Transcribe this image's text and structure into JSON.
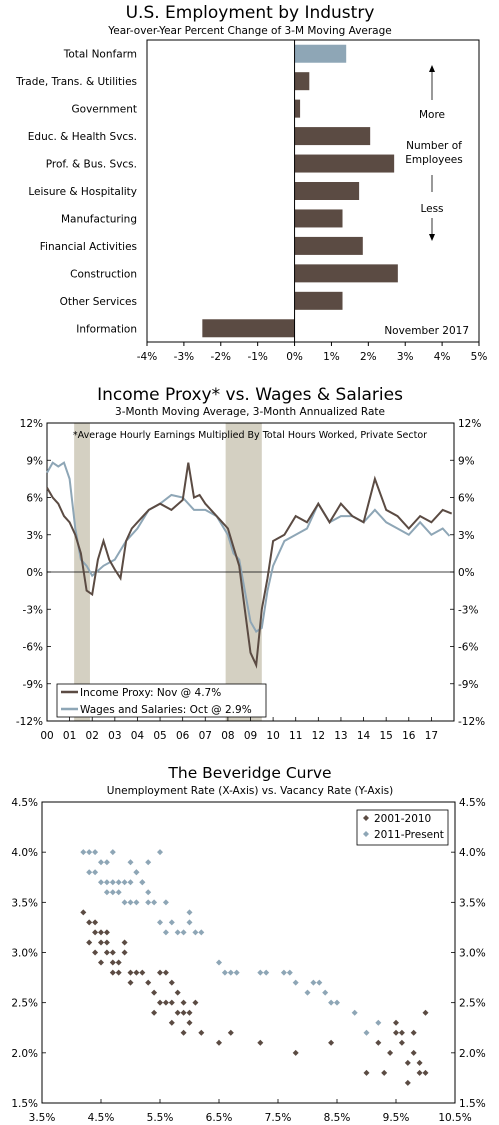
{
  "colors": {
    "bar": "#5b4b43",
    "bar_highlight": "#8ea6b6",
    "line_dark": "#5b4b43",
    "line_light": "#8ea6b6",
    "recession": "#d4d0c2"
  },
  "chart_data": [
    {
      "type": "bar",
      "orientation": "horizontal",
      "title": "U.S. Employment by Industry",
      "subtitle": "Year-over-Year Percent Change of 3-M Moving Average",
      "categories": [
        "Total Nonfarm",
        "Trade, Trans. & Utilities",
        "Government",
        "Educ. & Health Svcs.",
        "Prof. & Bus. Svcs.",
        "Leisure & Hospitality",
        "Manufacturing",
        "Financial Activities",
        "Construction",
        "Other Services",
        "Information"
      ],
      "values": [
        1.4,
        0.4,
        0.15,
        2.05,
        2.7,
        1.75,
        1.3,
        1.85,
        2.8,
        1.3,
        -2.5
      ],
      "highlight_index": 0,
      "x_ticks": [
        "-4%",
        "-3%",
        "-2%",
        "-1%",
        "0%",
        "1%",
        "2%",
        "3%",
        "4%",
        "5%"
      ],
      "xlim": [
        -4,
        5
      ],
      "annotations": {
        "more": "More",
        "number_line1": "Number of",
        "number_line2": "Employees",
        "less": "Less",
        "date": "November 2017"
      }
    },
    {
      "type": "line",
      "title": "Income Proxy* vs. Wages & Salaries",
      "subtitle": "3-Month Moving Average, 3-Month Annualized Rate",
      "note": "*Average Hourly Earnings Multiplied By Total Hours Worked, Private Sector",
      "x_ticks": [
        "00",
        "01",
        "02",
        "03",
        "04",
        "05",
        "06",
        "07",
        "08",
        "09",
        "10",
        "11",
        "12",
        "13",
        "14",
        "15",
        "16",
        "17"
      ],
      "xlim": [
        2000.0,
        2018.0
      ],
      "y_ticks": [
        "12%",
        "9%",
        "6%",
        "3%",
        "0%",
        "-3%",
        "-6%",
        "-9%",
        "-12%"
      ],
      "ylim": [
        -12,
        12
      ],
      "recessions": [
        [
          2001.2,
          2001.9
        ],
        [
          2007.9,
          2009.5
        ]
      ],
      "legend": [
        "Income Proxy: Nov @ 4.7%",
        "Wages and Salaries: Oct @ 2.9%"
      ],
      "series": [
        {
          "name": "Income Proxy: Nov @ 4.7%",
          "x": [
            2000.0,
            2000.25,
            2000.5,
            2000.75,
            2001.0,
            2001.25,
            2001.5,
            2001.75,
            2002.0,
            2002.25,
            2002.5,
            2002.75,
            2003.0,
            2003.25,
            2003.5,
            2003.75,
            2004.0,
            2004.5,
            2005.0,
            2005.5,
            2006.0,
            2006.25,
            2006.5,
            2006.75,
            2007.0,
            2007.5,
            2008.0,
            2008.25,
            2008.5,
            2008.75,
            2009.0,
            2009.25,
            2009.5,
            2009.75,
            2010.0,
            2010.5,
            2011.0,
            2011.5,
            2012.0,
            2012.5,
            2013.0,
            2013.5,
            2014.0,
            2014.5,
            2015.0,
            2015.5,
            2016.0,
            2016.5,
            2017.0,
            2017.5,
            2017.9
          ],
          "y": [
            6.8,
            6.0,
            5.5,
            4.5,
            4.0,
            3.0,
            1.5,
            -1.5,
            -1.8,
            1.0,
            2.5,
            1.0,
            0.2,
            -0.5,
            2.5,
            3.5,
            4.0,
            5.0,
            5.5,
            5.0,
            5.8,
            8.8,
            6.0,
            6.2,
            5.5,
            4.5,
            3.5,
            2.0,
            0.5,
            -3.0,
            -6.5,
            -7.5,
            -3.0,
            -0.5,
            2.5,
            3.0,
            4.5,
            4.0,
            5.5,
            4.0,
            5.5,
            4.5,
            4.0,
            7.5,
            5.0,
            4.5,
            3.5,
            4.5,
            4.0,
            5.0,
            4.7
          ]
        },
        {
          "name": "Wages and Salaries: Oct @ 2.9%",
          "x": [
            2000.0,
            2000.25,
            2000.5,
            2000.75,
            2001.0,
            2001.25,
            2001.5,
            2001.75,
            2002.0,
            2002.5,
            2003.0,
            2003.5,
            2004.0,
            2004.5,
            2005.0,
            2005.5,
            2006.0,
            2006.5,
            2007.0,
            2007.5,
            2008.0,
            2008.25,
            2008.5,
            2008.75,
            2009.0,
            2009.25,
            2009.5,
            2009.75,
            2010.0,
            2010.5,
            2011.0,
            2011.5,
            2012.0,
            2012.5,
            2013.0,
            2013.5,
            2014.0,
            2014.5,
            2015.0,
            2015.5,
            2016.0,
            2016.5,
            2017.0,
            2017.5,
            2017.8
          ],
          "y": [
            8.0,
            8.8,
            8.5,
            8.8,
            7.5,
            3.5,
            1.0,
            0.5,
            -0.3,
            0.5,
            1.0,
            2.5,
            3.5,
            5.0,
            5.5,
            6.2,
            6.0,
            5.0,
            5.0,
            4.5,
            3.0,
            1.5,
            1.0,
            -1.5,
            -4.0,
            -4.8,
            -4.5,
            -1.5,
            0.5,
            2.5,
            3.0,
            3.5,
            5.5,
            4.0,
            4.5,
            4.5,
            4.0,
            5.0,
            4.0,
            3.5,
            3.0,
            4.0,
            3.0,
            3.5,
            2.9
          ]
        }
      ]
    },
    {
      "type": "scatter",
      "title": "The Beveridge Curve",
      "subtitle": "Unemployment Rate (X-Axis) vs. Vacancy Rate (Y-Axis)",
      "x_ticks": [
        "3.5%",
        "4.5%",
        "5.5%",
        "6.5%",
        "7.5%",
        "8.5%",
        "9.5%",
        "10.5%"
      ],
      "xlim": [
        3.5,
        10.5
      ],
      "y_ticks": [
        "4.5%",
        "4.0%",
        "3.5%",
        "3.0%",
        "2.5%",
        "2.0%",
        "1.5%"
      ],
      "ylim": [
        1.5,
        4.5
      ],
      "legend": [
        "2001-2010",
        "2011-Present"
      ],
      "series": [
        {
          "name": "2001-2010",
          "x": [
            4.2,
            4.3,
            4.4,
            4.5,
            4.6,
            4.3,
            4.4,
            4.5,
            4.6,
            4.4,
            4.5,
            4.7,
            4.8,
            4.6,
            4.7,
            4.9,
            5.0,
            4.7,
            4.8,
            5.0,
            4.9,
            5.2,
            5.1,
            5.3,
            5.4,
            5.5,
            5.6,
            5.7,
            5.8,
            5.9,
            5.5,
            5.6,
            5.7,
            5.8,
            5.9,
            6.0,
            6.1,
            5.4,
            5.7,
            5.9,
            6.0,
            6.2,
            6.5,
            6.7,
            7.2,
            7.8,
            8.4,
            9.0,
            9.2,
            9.4,
            9.5,
            9.6,
            9.7,
            9.8,
            9.9,
            10.0,
            9.5,
            9.6,
            9.8,
            9.9,
            9.7,
            10.0,
            9.3
          ],
          "y": [
            3.4,
            3.3,
            3.2,
            3.1,
            3.0,
            3.1,
            3.0,
            3.2,
            3.1,
            3.3,
            2.9,
            3.0,
            2.9,
            3.2,
            2.8,
            3.0,
            2.8,
            2.9,
            2.8,
            2.7,
            3.1,
            2.8,
            2.8,
            2.7,
            2.6,
            2.5,
            2.5,
            2.5,
            2.4,
            2.5,
            2.8,
            2.8,
            2.7,
            2.6,
            2.4,
            2.4,
            2.5,
            2.4,
            2.3,
            2.2,
            2.3,
            2.2,
            2.1,
            2.2,
            2.1,
            2.0,
            2.1,
            1.8,
            2.1,
            2.0,
            2.2,
            2.1,
            1.9,
            2.0,
            1.9,
            1.8,
            2.3,
            2.2,
            2.2,
            1.8,
            1.7,
            2.4,
            1.8
          ]
        },
        {
          "name": "2011-Present",
          "x": [
            4.2,
            4.3,
            4.4,
            4.5,
            4.6,
            4.3,
            4.4,
            4.5,
            4.6,
            4.7,
            4.8,
            4.9,
            5.0,
            5.1,
            5.2,
            4.6,
            4.7,
            4.8,
            4.9,
            5.0,
            5.1,
            5.3,
            5.4,
            5.0,
            5.1,
            5.2,
            5.3,
            5.5,
            5.6,
            5.7,
            5.8,
            5.9,
            6.0,
            6.1,
            6.2,
            6.5,
            6.6,
            6.7,
            6.8,
            7.2,
            7.3,
            7.6,
            7.7,
            7.8,
            8.0,
            8.1,
            8.2,
            8.3,
            8.4,
            8.5,
            8.8,
            9.0,
            9.2,
            4.7,
            5.5,
            5.3,
            5.6,
            6.0
          ],
          "y": [
            4.0,
            4.0,
            4.0,
            3.9,
            3.9,
            3.8,
            3.8,
            3.7,
            3.7,
            3.7,
            3.7,
            3.7,
            3.7,
            3.8,
            3.7,
            3.6,
            3.6,
            3.6,
            3.5,
            3.5,
            3.5,
            3.5,
            3.5,
            3.9,
            3.8,
            3.7,
            3.6,
            3.3,
            3.2,
            3.3,
            3.2,
            3.2,
            3.3,
            3.2,
            3.2,
            2.9,
            2.8,
            2.8,
            2.8,
            2.8,
            2.8,
            2.8,
            2.8,
            2.7,
            2.6,
            2.7,
            2.7,
            2.6,
            2.5,
            2.5,
            2.4,
            2.2,
            2.3,
            4.0,
            4.0,
            3.9,
            3.5,
            3.4
          ]
        }
      ]
    }
  ]
}
